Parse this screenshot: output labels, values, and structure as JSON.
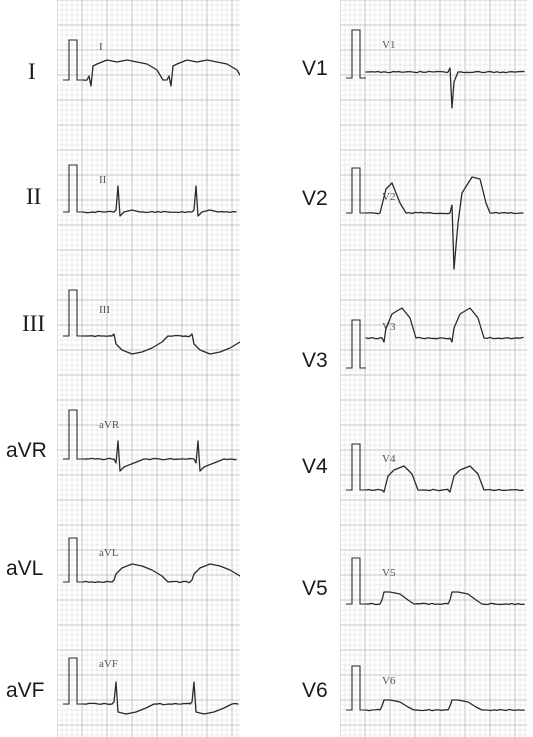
{
  "left_column": {
    "leads": [
      {
        "label": "I",
        "stamp": "I"
      },
      {
        "label": "II",
        "stamp": "II"
      },
      {
        "label": "III",
        "stamp": "III"
      },
      {
        "label": "aVR",
        "stamp": "aVR"
      },
      {
        "label": "aVL",
        "stamp": "aVL"
      },
      {
        "label": "aVF",
        "stamp": "aVF"
      }
    ]
  },
  "right_column": {
    "leads": [
      {
        "label": "V1",
        "stamp": "V1"
      },
      {
        "label": "V2",
        "stamp": "V2"
      },
      {
        "label": "V3",
        "stamp": "V3"
      },
      {
        "label": "V4",
        "stamp": "V4"
      },
      {
        "label": "V5",
        "stamp": "V5"
      },
      {
        "label": "V6",
        "stamp": "V6"
      }
    ]
  },
  "colors": {
    "trace": "#2a2a2a",
    "grid_minor": "#d9d9d9",
    "grid_major": "#b4b4b4"
  }
}
